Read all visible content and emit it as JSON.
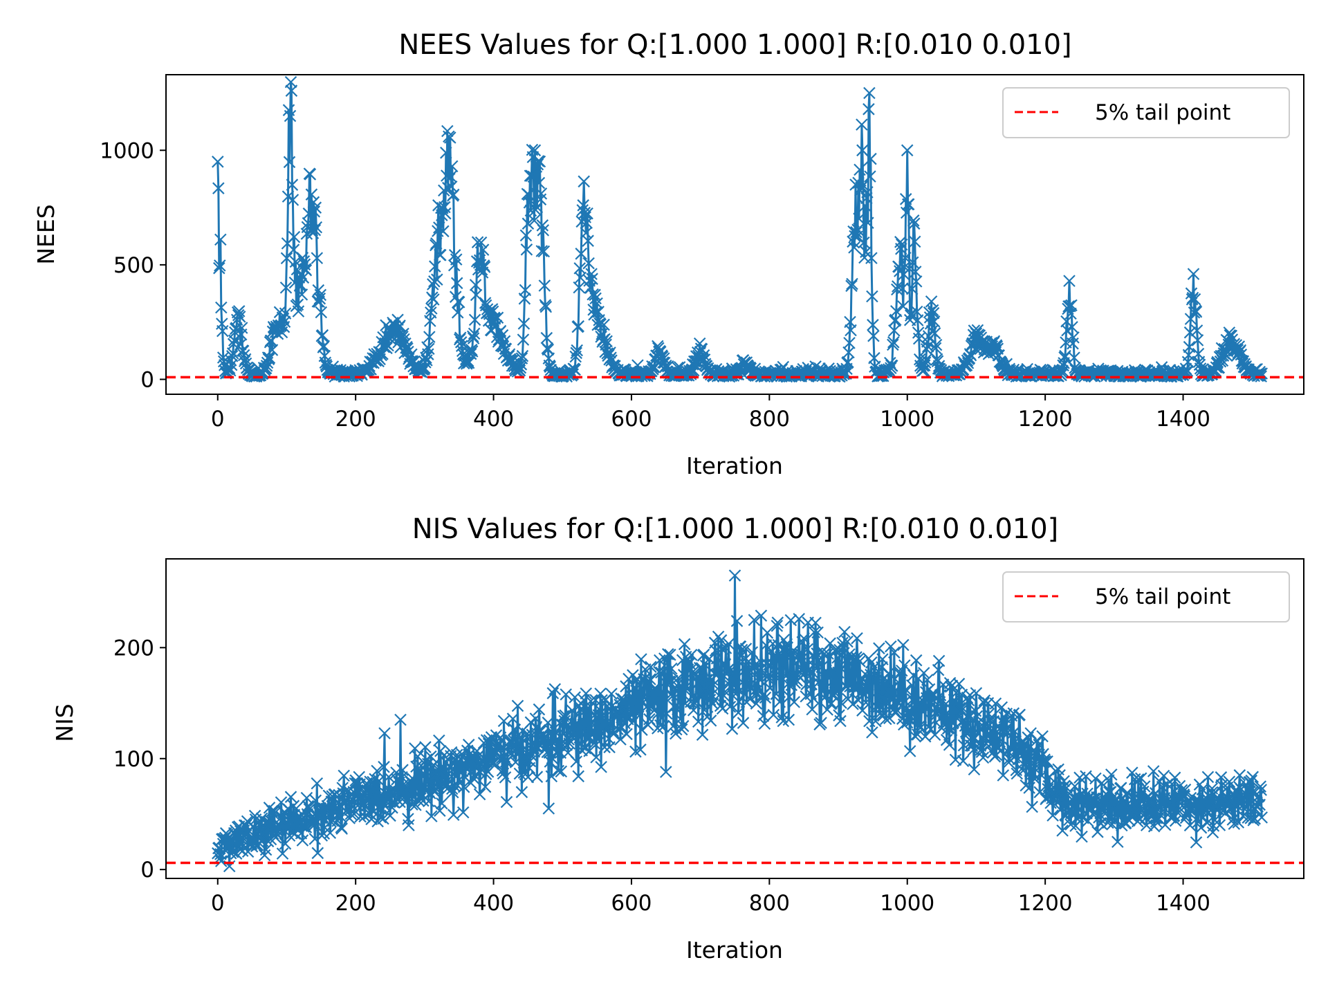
{
  "chart_data": [
    {
      "type": "line",
      "title": "NEES Values for Q:[1.000 1.000] R:[0.010 0.010]",
      "xlabel": "Iteration",
      "ylabel": "NEES",
      "xlim": [
        -75,
        1575
      ],
      "ylim": [
        -65,
        1330
      ],
      "xticks": [
        0,
        200,
        400,
        600,
        800,
        1000,
        1200,
        1400
      ],
      "yticks": [
        0,
        500,
        1000
      ],
      "grid": false,
      "legend": {
        "placement": "top-right",
        "entries": [
          "5% tail point"
        ]
      },
      "threshold": {
        "name": "5% tail point",
        "value": 9.5,
        "color": "#ff0000",
        "style": "dashed"
      },
      "series": {
        "color": "#1f77b4",
        "marker": "x",
        "n": 1515,
        "x_start": 0,
        "x_step": 1,
        "baseline": 12,
        "noise": 15,
        "peaks": [
          [
            0,
            950,
            4
          ],
          [
            30,
            280,
            6
          ],
          [
            85,
            230,
            8
          ],
          [
            105,
            1150,
            3
          ],
          [
            115,
            480,
            14
          ],
          [
            135,
            650,
            7
          ],
          [
            145,
            340,
            6
          ],
          [
            255,
            240,
            18
          ],
          [
            320,
            760,
            8
          ],
          [
            335,
            1060,
            6
          ],
          [
            345,
            360,
            6
          ],
          [
            380,
            520,
            5
          ],
          [
            395,
            300,
            18
          ],
          [
            450,
            680,
            4
          ],
          [
            460,
            1000,
            7
          ],
          [
            470,
            560,
            5
          ],
          [
            530,
            760,
            5
          ],
          [
            540,
            400,
            7
          ],
          [
            555,
            240,
            10
          ],
          [
            640,
            120,
            6
          ],
          [
            700,
            120,
            6
          ],
          [
            765,
            50,
            6
          ],
          [
            925,
            850,
            5
          ],
          [
            935,
            1000,
            4
          ],
          [
            945,
            1250,
            3
          ],
          [
            990,
            600,
            6
          ],
          [
            1000,
            1000,
            2
          ],
          [
            1010,
            680,
            4
          ],
          [
            1035,
            340,
            5
          ],
          [
            1100,
            200,
            10
          ],
          [
            1125,
            160,
            8
          ],
          [
            1235,
            430,
            4
          ],
          [
            1415,
            460,
            4
          ],
          [
            1470,
            190,
            12
          ]
        ]
      }
    },
    {
      "type": "line",
      "title": "NIS Values for Q:[1.000 1.000] R:[0.010 0.010]",
      "xlabel": "Iteration",
      "ylabel": "NIS",
      "xlim": [
        -75,
        1575
      ],
      "ylim": [
        -8,
        280
      ],
      "xticks": [
        0,
        200,
        400,
        600,
        800,
        1000,
        1200,
        1400
      ],
      "yticks": [
        0,
        100,
        200
      ],
      "grid": false,
      "legend": {
        "placement": "top-right",
        "entries": [
          "5% tail point"
        ]
      },
      "threshold": {
        "name": "5% tail point",
        "value": 6,
        "color": "#ff0000",
        "style": "dashed"
      },
      "series": {
        "color": "#1f77b4",
        "marker": "x",
        "n": 1515,
        "x_start": 0,
        "x_step": 1,
        "trend": [
          [
            0,
            20
          ],
          [
            200,
            60
          ],
          [
            400,
            100
          ],
          [
            550,
            130
          ],
          [
            700,
            170
          ],
          [
            850,
            180
          ],
          [
            950,
            170
          ],
          [
            1100,
            130
          ],
          [
            1150,
            120
          ],
          [
            1230,
            60
          ],
          [
            1400,
            60
          ],
          [
            1515,
            60
          ]
        ],
        "spread": 22,
        "outliers": [
          [
            265,
            135
          ],
          [
            480,
            55
          ],
          [
            650,
            88
          ],
          [
            750,
            265
          ],
          [
            1305,
            25
          ]
        ]
      }
    }
  ]
}
